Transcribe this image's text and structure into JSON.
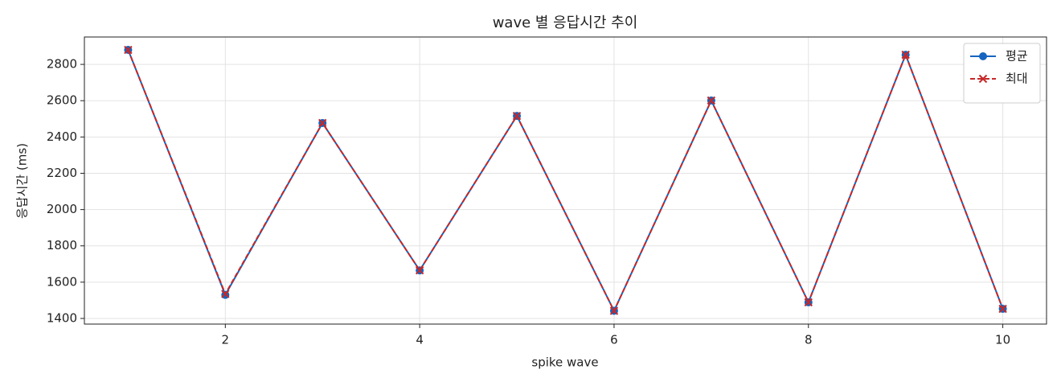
{
  "chart_data": {
    "type": "line",
    "title": "wave 별 응답시간 추이",
    "x_label": "spike wave",
    "y_label": "응답시간 (ms)",
    "x": [
      1,
      2,
      3,
      4,
      5,
      6,
      7,
      8,
      9,
      10
    ],
    "series": [
      {
        "name": "평균",
        "color": "#1565c0",
        "marker": "circle",
        "dash": false,
        "values": [
          2880,
          1530,
          2477,
          1665,
          2516,
          1442,
          2601,
          1489,
          2853,
          1453
        ]
      },
      {
        "name": "최대",
        "color": "#c62828",
        "marker": "x",
        "dash": true,
        "values": [
          2880,
          1535,
          2477,
          1665,
          2516,
          1442,
          2601,
          1489,
          2853,
          1453
        ]
      }
    ],
    "xlim": [
      0.55,
      10.45
    ],
    "xticks": [
      2,
      4,
      6,
      8,
      10
    ],
    "ylim": [
      1369,
      2951
    ],
    "yticks": [
      1400,
      1600,
      1800,
      2000,
      2200,
      2400,
      2600,
      2800
    ],
    "grid": true,
    "legend_loc": "upper right"
  }
}
